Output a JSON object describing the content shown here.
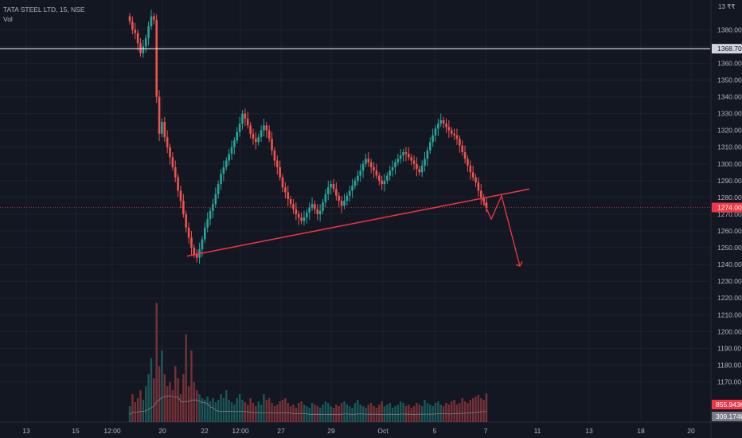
{
  "legend": {
    "symbol_line": "TATA STEEL LTD, 15, NSE",
    "volume_label": "Vol"
  },
  "corner_tag": "13 ₹₹",
  "chart_data": {
    "type": "candlestick",
    "title": "TATA STEEL LTD, 15, NSE",
    "price_axis_labels": [
      1380,
      1370,
      1360,
      1350,
      1340,
      1330,
      1320,
      1310,
      1300,
      1290,
      1280,
      1270,
      1260,
      1250,
      1240,
      1230,
      1220,
      1210,
      1200,
      1190,
      1180,
      1170
    ],
    "ylim": [
      1165,
      1393
    ],
    "time_axis_labels": [
      "13",
      "15",
      "12:00",
      "20",
      "22",
      "12:00",
      "27",
      "29",
      "Oct",
      "5",
      "7",
      "11",
      "13",
      "18",
      "20"
    ],
    "horizontal_line": {
      "value": 1368.7,
      "label": "1368.70",
      "color": "#ffffff"
    },
    "last_price": {
      "value": 1274.0,
      "label": "1274.00",
      "color": "#f23645"
    },
    "volume_labels": [
      {
        "label": "855.943K",
        "color": "#f23645"
      },
      {
        "label": "309.174K",
        "color": "#787b86"
      }
    ],
    "trendline": {
      "from": {
        "x": "20",
        "y": 1245
      },
      "to": {
        "x": "11",
        "y": 1285
      },
      "color": "#f23645"
    },
    "projection_arrow": {
      "points": [
        1279,
        1267,
        1281,
        1239
      ],
      "color": "#f23645"
    },
    "price_path": [
      1385,
      1380,
      1378,
      1372,
      1366,
      1370,
      1375,
      1382,
      1388,
      1386,
      1340,
      1318,
      1325,
      1316,
      1310,
      1304,
      1298,
      1292,
      1284,
      1278,
      1270,
      1262,
      1256,
      1250,
      1246,
      1244,
      1249,
      1255,
      1262,
      1267,
      1272,
      1276,
      1282,
      1288,
      1294,
      1298,
      1302,
      1306,
      1310,
      1314,
      1319,
      1324,
      1330,
      1327,
      1323,
      1318,
      1315,
      1313,
      1316,
      1320,
      1323,
      1320,
      1315,
      1308,
      1302,
      1298,
      1292,
      1286,
      1283,
      1279,
      1276,
      1273,
      1270,
      1268,
      1266,
      1268,
      1271,
      1274,
      1276,
      1273,
      1270,
      1272,
      1277,
      1282,
      1286,
      1288,
      1285,
      1281,
      1278,
      1275,
      1278,
      1281,
      1284,
      1287,
      1290,
      1293,
      1296,
      1300,
      1303,
      1301,
      1298,
      1296,
      1293,
      1290,
      1288,
      1290,
      1293,
      1296,
      1298,
      1301,
      1303,
      1305,
      1307,
      1306,
      1304,
      1302,
      1300,
      1297,
      1295,
      1299,
      1303,
      1308,
      1313,
      1317,
      1321,
      1324,
      1326,
      1324,
      1322,
      1320,
      1318,
      1317,
      1315,
      1311,
      1307,
      1303,
      1299,
      1295,
      1292,
      1289,
      1284,
      1280,
      1277,
      1274
    ],
    "volume_path": [
      20,
      35,
      25,
      30,
      40,
      28,
      45,
      60,
      80,
      55,
      150,
      70,
      90,
      60,
      45,
      50,
      40,
      70,
      55,
      35,
      60,
      110,
      45,
      90,
      50,
      40,
      35,
      30,
      28,
      32,
      26,
      30,
      25,
      28,
      35,
      30,
      40,
      28,
      25,
      22,
      30,
      35,
      28,
      25,
      22,
      30,
      24,
      20,
      26,
      22,
      35,
      28,
      30,
      24,
      20,
      22,
      26,
      28,
      30,
      24,
      20,
      22,
      18,
      24,
      26,
      22,
      20,
      18,
      24,
      22,
      20,
      18,
      22,
      26,
      24,
      20,
      18,
      22,
      20,
      24,
      26,
      22,
      20,
      18,
      24,
      28,
      22,
      20,
      18,
      22,
      24,
      20,
      18,
      22,
      26,
      20,
      22,
      24,
      18,
      20,
      22,
      26,
      24,
      20,
      22,
      18,
      20,
      24,
      22,
      20,
      28,
      24,
      22,
      20,
      24,
      26,
      22,
      20,
      24,
      22,
      26,
      28,
      22,
      24,
      30,
      26,
      24,
      28,
      30,
      32,
      34,
      30,
      28,
      36
    ]
  }
}
